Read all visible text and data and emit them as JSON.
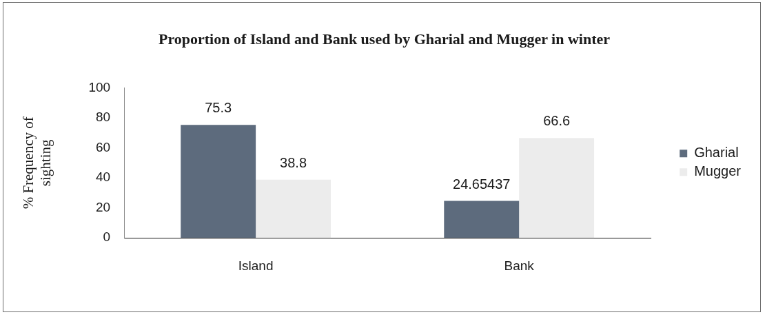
{
  "chart_data": {
    "type": "bar",
    "title": "Proportion of Island and Bank used by Gharial and Mugger in winter",
    "ylabel": "% Frequency of sighting",
    "categories": [
      "Island",
      "Bank"
    ],
    "series": [
      {
        "name": "Gharial",
        "color": "#5d6b7d",
        "values": [
          75.3,
          24.65437
        ]
      },
      {
        "name": "Mugger",
        "color": "#ececec",
        "values": [
          38.8,
          66.6
        ]
      }
    ],
    "ylim": [
      0,
      100
    ],
    "yticks": [
      0,
      20,
      40,
      60,
      80,
      100
    ],
    "data_labels": true,
    "legend": "right"
  }
}
